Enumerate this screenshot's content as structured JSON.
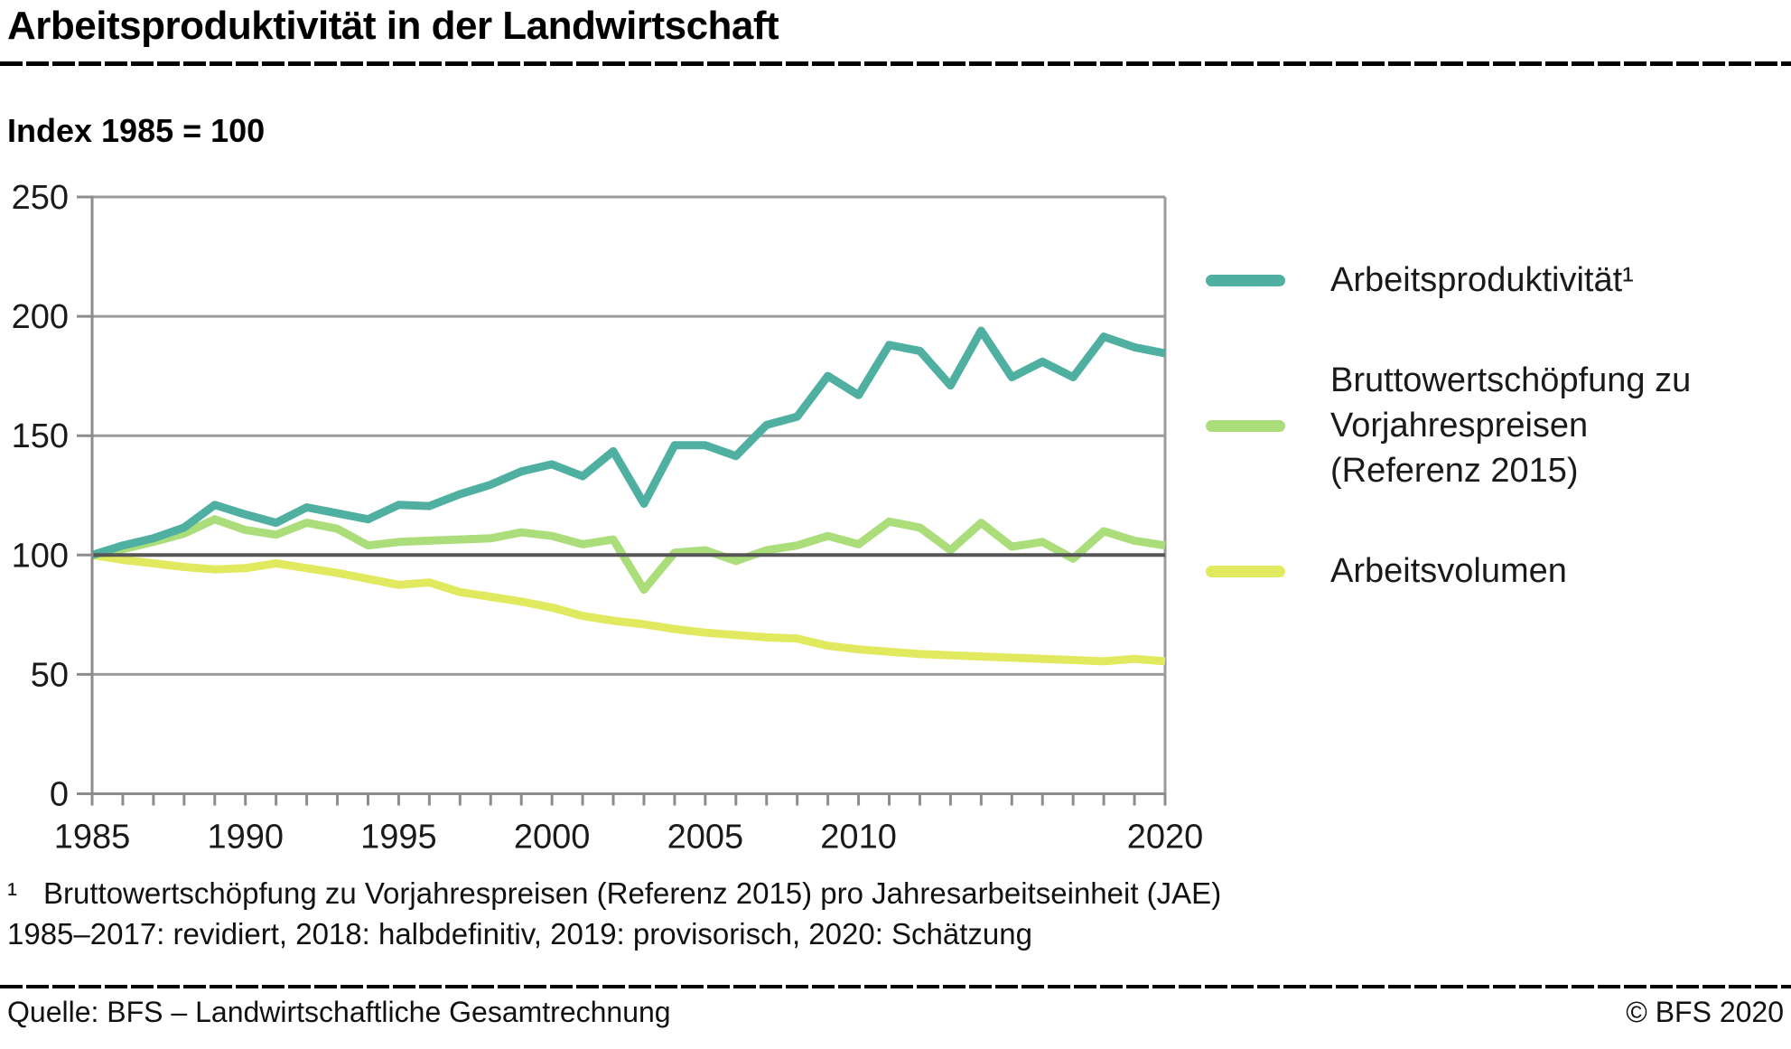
{
  "header": {
    "title": "Arbeitsproduktivität in der Landwirtschaft",
    "subtitle": "Index 1985 = 100"
  },
  "chart_data": {
    "type": "line",
    "x": [
      1985,
      1986,
      1987,
      1988,
      1989,
      1990,
      1991,
      1992,
      1993,
      1994,
      1995,
      1996,
      1997,
      1998,
      1999,
      2000,
      2001,
      2002,
      2003,
      2004,
      2005,
      2006,
      2007,
      2008,
      2009,
      2010,
      2011,
      2012,
      2013,
      2014,
      2015,
      2016,
      2017,
      2018,
      2019,
      2020
    ],
    "x_tick_label_years": [
      1985,
      1990,
      1995,
      2000,
      2005,
      2010,
      2020
    ],
    "y_ticks": [
      0,
      50,
      100,
      150,
      200,
      250
    ],
    "ylim": [
      0,
      250
    ],
    "reference_line": 100,
    "grid": true,
    "legend_position": "right",
    "series": [
      {
        "name": "Arbeitsproduktivität¹",
        "color": "#4fb0a1",
        "values": [
          100,
          104,
          107,
          111.5,
          121,
          117,
          113.5,
          120,
          117.5,
          115,
          121,
          120.5,
          125.5,
          129.5,
          135,
          138,
          133,
          143.5,
          121.5,
          146,
          146,
          141.5,
          154.5,
          158,
          175,
          167,
          188,
          185.5,
          171,
          194,
          174.5,
          181,
          174.5,
          191.5,
          187,
          184.5
        ]
      },
      {
        "name": "Bruttowertschöpfung zu Vorjahrespreisen (Referenz 2015)",
        "color": "#abdd7b",
        "values": [
          100,
          102.5,
          105.5,
          109,
          115,
          110.5,
          108.5,
          113.5,
          111,
          104,
          105.5,
          106,
          106.5,
          107,
          109.5,
          108,
          104.5,
          106.5,
          85.5,
          101,
          102,
          97.5,
          102,
          104,
          108,
          104.5,
          114,
          111.5,
          102,
          113.5,
          103.5,
          105.5,
          98.5,
          110,
          106,
          104
        ]
      },
      {
        "name": "Arbeitsvolumen",
        "color": "#e1e95f",
        "values": [
          100,
          98,
          96.5,
          95,
          94,
          94.5,
          96.5,
          94.5,
          92.5,
          90,
          87.5,
          88.5,
          84.5,
          82.5,
          80.5,
          78,
          74.5,
          72.5,
          71,
          69,
          67.5,
          66.5,
          65.5,
          65,
          62,
          60.5,
          59.5,
          58.5,
          58,
          57.5,
          57,
          56.5,
          56,
          55.5,
          56.5,
          55.5
        ]
      }
    ],
    "colors": {
      "grid": "#9b9b9b",
      "axis": "#8c8c8c",
      "reference_line": "#565656",
      "tick_text": "#1a1a1a"
    }
  },
  "legend": {
    "items": [
      {
        "lines": [
          "Arbeitsproduktivität¹"
        ]
      },
      {
        "lines": [
          "Bruttowertschöpfung zu",
          "Vorjahrespreisen",
          "(Referenz 2015)"
        ]
      },
      {
        "lines": [
          "Arbeitsvolumen"
        ]
      }
    ]
  },
  "footnotes": {
    "marker": "¹",
    "line1": "Bruttowertschöpfung zu Vorjahrespreisen (Referenz 2015) pro Jahresarbeitseinheit (JAE)",
    "line2": "1985–2017: revidiert, 2018: halbdefinitiv, 2019: provisorisch, 2020: Schätzung"
  },
  "footer": {
    "source": "Quelle: BFS – Landwirtschaftliche Gesamtrechnung",
    "copyright": "© BFS 2020"
  }
}
